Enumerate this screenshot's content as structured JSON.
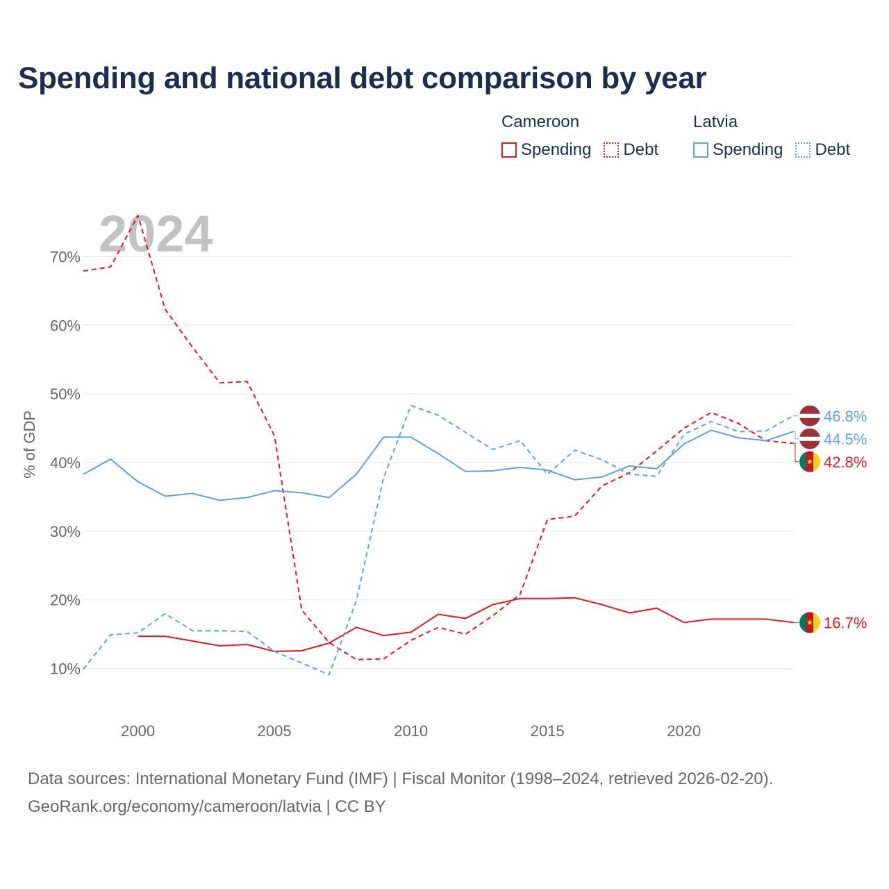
{
  "title": "Spending and national debt comparison by year",
  "legend": {
    "cameroon": {
      "label": "Cameroon",
      "spending": "Spending",
      "debt": "Debt",
      "color": "#e8171f"
    },
    "latvia": {
      "label": "Latvia",
      "spending": "Spending",
      "debt": "Debt",
      "color": "#5aa2e2"
    }
  },
  "year_watermark": "2024",
  "source_line1": "Data sources: International Monetary Fund (IMF) | Fiscal Monitor (1998–2024, retrieved 2026-02-20).",
  "source_line2": "GeoRank.org/economy/cameroon/latvia | CC BY",
  "chart_data": {
    "type": "line",
    "title": "Spending and national debt comparison by year",
    "ylabel": "% of GDP",
    "xlabel": "",
    "xlim": [
      1998,
      2024
    ],
    "ylim": [
      5,
      75
    ],
    "yticks": [
      10,
      20,
      30,
      40,
      50,
      60,
      70
    ],
    "ytick_labels": [
      "10%",
      "20%",
      "30%",
      "40%",
      "50%",
      "60%",
      "70%"
    ],
    "xticks": [
      2000,
      2005,
      2010,
      2015,
      2020
    ],
    "xtick_labels": [
      "2000",
      "2005",
      "2010",
      "2015",
      "2020"
    ],
    "grid": true,
    "series": [
      {
        "name": "Cameroon Spending",
        "key": "cmr-spending",
        "country": "cameroon",
        "style": "solid",
        "color": "#e8171f",
        "x": [
          2000,
          2001,
          2002,
          2003,
          2004,
          2005,
          2006,
          2007,
          2008,
          2009,
          2010,
          2011,
          2012,
          2013,
          2014,
          2015,
          2016,
          2017,
          2018,
          2019,
          2020,
          2021,
          2022,
          2023,
          2024
        ],
        "values": [
          14.7,
          14.7,
          14.0,
          13.3,
          13.5,
          12.5,
          12.6,
          13.7,
          16.0,
          14.8,
          15.3,
          17.9,
          17.3,
          19.3,
          20.2,
          20.2,
          20.3,
          19.3,
          18.1,
          18.8,
          16.7,
          17.2,
          17.2,
          17.2,
          16.7
        ]
      },
      {
        "name": "Cameroon Debt",
        "key": "cmr-debt",
        "country": "cameroon",
        "style": "dashed",
        "color": "#e8171f",
        "x": [
          1998,
          1999,
          2000,
          2001,
          2002,
          2003,
          2004,
          2005,
          2006,
          2007,
          2008,
          2009,
          2010,
          2011,
          2012,
          2013,
          2014,
          2015,
          2016,
          2017,
          2018,
          2019,
          2020,
          2021,
          2022,
          2023,
          2024
        ],
        "values": [
          67.9,
          68.5,
          76.0,
          62.3,
          56.8,
          51.6,
          51.8,
          43.9,
          18.5,
          13.8,
          11.3,
          11.4,
          14.1,
          16.0,
          15.0,
          17.7,
          20.8,
          31.7,
          32.2,
          36.6,
          38.5,
          41.7,
          45.0,
          47.3,
          45.7,
          43.2,
          42.8
        ]
      },
      {
        "name": "Latvia Spending",
        "key": "lva-spending",
        "country": "latvia",
        "style": "solid",
        "color": "#5aa2e2",
        "x": [
          1998,
          1999,
          2000,
          2001,
          2002,
          2003,
          2004,
          2005,
          2006,
          2007,
          2008,
          2009,
          2010,
          2011,
          2012,
          2013,
          2014,
          2015,
          2016,
          2017,
          2018,
          2019,
          2020,
          2021,
          2022,
          2023,
          2024
        ],
        "values": [
          38.3,
          40.5,
          37.2,
          35.1,
          35.5,
          34.5,
          34.9,
          35.9,
          35.6,
          34.9,
          38.3,
          43.7,
          43.7,
          41.3,
          38.7,
          38.8,
          39.3,
          38.9,
          37.5,
          37.9,
          39.5,
          39.1,
          42.7,
          44.7,
          43.6,
          43.2,
          44.5
        ]
      },
      {
        "name": "Latvia Debt",
        "key": "lva-debt",
        "country": "latvia",
        "style": "dashed",
        "color": "#5aa2e2",
        "x": [
          1998,
          1999,
          2000,
          2001,
          2002,
          2003,
          2004,
          2005,
          2006,
          2007,
          2008,
          2009,
          2010,
          2011,
          2012,
          2013,
          2014,
          2015,
          2016,
          2017,
          2018,
          2019,
          2020,
          2021,
          2022,
          2023,
          2024
        ],
        "values": [
          9.9,
          14.9,
          15.2,
          18.0,
          15.5,
          15.5,
          15.4,
          12.5,
          10.8,
          9.1,
          19.9,
          37.8,
          48.3,
          46.9,
          44.4,
          41.9,
          43.2,
          38.3,
          41.8,
          40.4,
          38.3,
          38.0,
          44.1,
          46.0,
          44.5,
          44.6,
          46.8
        ]
      }
    ],
    "end_labels": [
      {
        "series": "lva-debt",
        "text": "46.8%",
        "flag": "latvia"
      },
      {
        "series": "lva-spending",
        "text": "44.5%",
        "flag": "latvia"
      },
      {
        "series": "cmr-debt",
        "text": "42.8%",
        "flag": "cameroon"
      },
      {
        "series": "cmr-spending",
        "text": "16.7%",
        "flag": "cameroon"
      }
    ]
  }
}
